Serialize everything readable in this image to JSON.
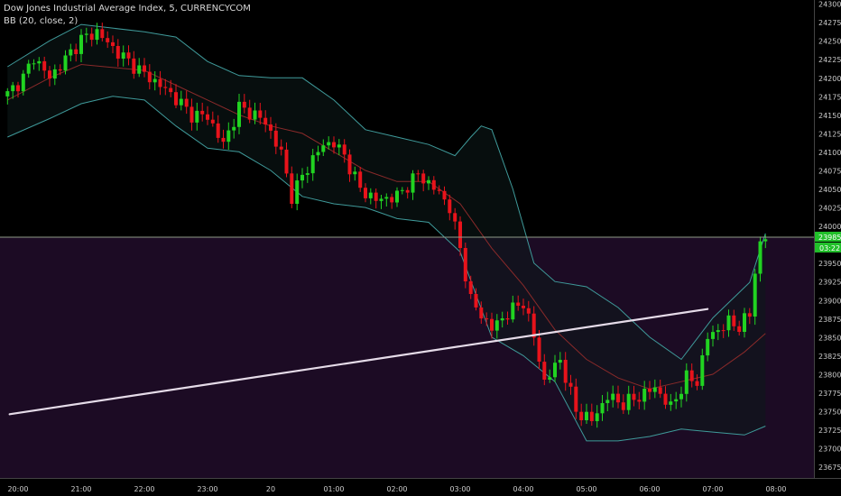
{
  "header": {
    "title": "Dow Jones Industrial Average Index, 5, CURRENCYCOM",
    "indicator": "BB (20, close, 2)"
  },
  "price_tags": {
    "last": "23985",
    "countdown": "03:22"
  },
  "colors": {
    "background": "#000000",
    "lower_zone": "#1c0b24",
    "up": "#21d321",
    "down": "#e8131b",
    "band": "#3f9a9a",
    "basis": "#8a2a2a",
    "band_fill": "#0c1a1a",
    "trendline": "#e5dbe8",
    "last_tag": "#21c02a",
    "axis_text": "#cccccc"
  },
  "chart_data": {
    "type": "candlestick",
    "interval": "5",
    "y_axis": {
      "position": "right",
      "ylim": [
        23660,
        24305
      ],
      "ticks": [
        24300,
        24275,
        24250,
        24225,
        24200,
        24175,
        24150,
        24125,
        24100,
        24075,
        24050,
        24025,
        24000,
        23950,
        23925,
        23900,
        23875,
        23850,
        23825,
        23800,
        23775,
        23750,
        23725,
        23700,
        23675
      ]
    },
    "x_axis": {
      "labels": [
        "20:00",
        "21:00",
        "22:00",
        "23:00",
        "20",
        "01:00",
        "02:00",
        "03:00",
        "04:00",
        "05:00",
        "06:00",
        "07:00",
        "08:00"
      ]
    },
    "horizontal_line": 23985,
    "trendline": {
      "from": [
        "19:52",
        23746
      ],
      "to": [
        "06:55",
        23888
      ]
    },
    "candle_anchors": [
      [
        "19:50",
        24178
      ],
      [
        "20:05",
        24200
      ],
      [
        "20:15",
        24228
      ],
      [
        "20:30",
        24200
      ],
      [
        "20:45",
        24225
      ],
      [
        "21:00",
        24252
      ],
      [
        "21:15",
        24262
      ],
      [
        "21:30",
        24240
      ],
      [
        "21:45",
        24222
      ],
      [
        "22:00",
        24205
      ],
      [
        "22:15",
        24190
      ],
      [
        "22:30",
        24172
      ],
      [
        "22:45",
        24150
      ],
      [
        "23:00",
        24148
      ],
      [
        "23:15",
        24110
      ],
      [
        "23:30",
        24160
      ],
      [
        "23:45",
        24150
      ],
      [
        "23:55",
        24140
      ],
      [
        "00:10",
        24098
      ],
      [
        "00:20",
        24040
      ],
      [
        "00:35",
        24080
      ],
      [
        "00:50",
        24110
      ],
      [
        "01:00",
        24112
      ],
      [
        "01:10",
        24095
      ],
      [
        "01:25",
        24050
      ],
      [
        "01:40",
        24035
      ],
      [
        "02:00",
        24040
      ],
      [
        "02:20",
        24070
      ],
      [
        "02:40",
        24045
      ],
      [
        "02:50",
        24025
      ],
      [
        "03:00",
        23970
      ],
      [
        "03:10",
        23900
      ],
      [
        "03:20",
        23880
      ],
      [
        "03:30",
        23862
      ],
      [
        "03:45",
        23882
      ],
      [
        "04:00",
        23898
      ],
      [
        "04:10",
        23850
      ],
      [
        "04:20",
        23790
      ],
      [
        "04:35",
        23820
      ],
      [
        "04:50",
        23750
      ],
      [
        "05:05",
        23738
      ],
      [
        "05:20",
        23770
      ],
      [
        "05:35",
        23760
      ],
      [
        "05:50",
        23770
      ],
      [
        "06:05",
        23782
      ],
      [
        "06:20",
        23755
      ],
      [
        "06:35",
        23795
      ],
      [
        "06:45",
        23790
      ],
      [
        "06:55",
        23850
      ],
      [
        "07:05",
        23860
      ],
      [
        "07:15",
        23870
      ],
      [
        "07:25",
        23865
      ],
      [
        "07:35",
        23880
      ],
      [
        "07:40",
        23940
      ],
      [
        "07:45",
        23975
      ],
      [
        "07:50",
        23985
      ]
    ],
    "bollinger": {
      "period": 20,
      "source": "close",
      "stdev": 2,
      "upper": [
        [
          "19:50",
          24215
        ],
        [
          "20:30",
          24250
        ],
        [
          "21:00",
          24272
        ],
        [
          "22:00",
          24262
        ],
        [
          "22:30",
          24255
        ],
        [
          "23:00",
          24222
        ],
        [
          "23:30",
          24203
        ],
        [
          "00:00",
          24200
        ],
        [
          "00:30",
          24200
        ],
        [
          "01:00",
          24170
        ],
        [
          "01:30",
          24130
        ],
        [
          "02:00",
          24120
        ],
        [
          "02:30",
          24110
        ],
        [
          "02:55",
          24095
        ],
        [
          "03:10",
          24120
        ],
        [
          "03:20",
          24135
        ],
        [
          "03:30",
          24130
        ],
        [
          "03:50",
          24050
        ],
        [
          "04:10",
          23950
        ],
        [
          "04:30",
          23925
        ],
        [
          "05:00",
          23918
        ],
        [
          "05:30",
          23890
        ],
        [
          "06:00",
          23850
        ],
        [
          "06:30",
          23820
        ],
        [
          "07:00",
          23876
        ],
        [
          "07:35",
          23924
        ],
        [
          "07:50",
          23990
        ]
      ],
      "basis": [
        [
          "19:50",
          24170
        ],
        [
          "20:30",
          24200
        ],
        [
          "21:00",
          24218
        ],
        [
          "22:00",
          24210
        ],
        [
          "22:30",
          24190
        ],
        [
          "23:00",
          24170
        ],
        [
          "23:30",
          24150
        ],
        [
          "00:00",
          24135
        ],
        [
          "00:30",
          24125
        ],
        [
          "01:00",
          24100
        ],
        [
          "01:30",
          24075
        ],
        [
          "02:00",
          24060
        ],
        [
          "02:30",
          24060
        ],
        [
          "03:00",
          24030
        ],
        [
          "03:30",
          23970
        ],
        [
          "04:00",
          23920
        ],
        [
          "04:30",
          23860
        ],
        [
          "05:00",
          23820
        ],
        [
          "05:30",
          23795
        ],
        [
          "06:00",
          23780
        ],
        [
          "06:30",
          23790
        ],
        [
          "07:00",
          23800
        ],
        [
          "07:30",
          23830
        ],
        [
          "07:50",
          23855
        ]
      ],
      "lower": [
        [
          "19:50",
          24120
        ],
        [
          "20:30",
          24145
        ],
        [
          "21:00",
          24165
        ],
        [
          "21:30",
          24175
        ],
        [
          "22:00",
          24170
        ],
        [
          "22:30",
          24135
        ],
        [
          "23:00",
          24105
        ],
        [
          "23:30",
          24100
        ],
        [
          "00:00",
          24075
        ],
        [
          "00:30",
          24040
        ],
        [
          "01:00",
          24030
        ],
        [
          "01:30",
          24025
        ],
        [
          "02:00",
          24010
        ],
        [
          "02:30",
          24005
        ],
        [
          "03:00",
          23965
        ],
        [
          "03:30",
          23850
        ],
        [
          "04:00",
          23825
        ],
        [
          "04:30",
          23790
        ],
        [
          "05:00",
          23710
        ],
        [
          "05:30",
          23710
        ],
        [
          "06:00",
          23716
        ],
        [
          "06:30",
          23726
        ],
        [
          "07:00",
          23722
        ],
        [
          "07:30",
          23718
        ],
        [
          "07:50",
          23730
        ]
      ]
    }
  }
}
